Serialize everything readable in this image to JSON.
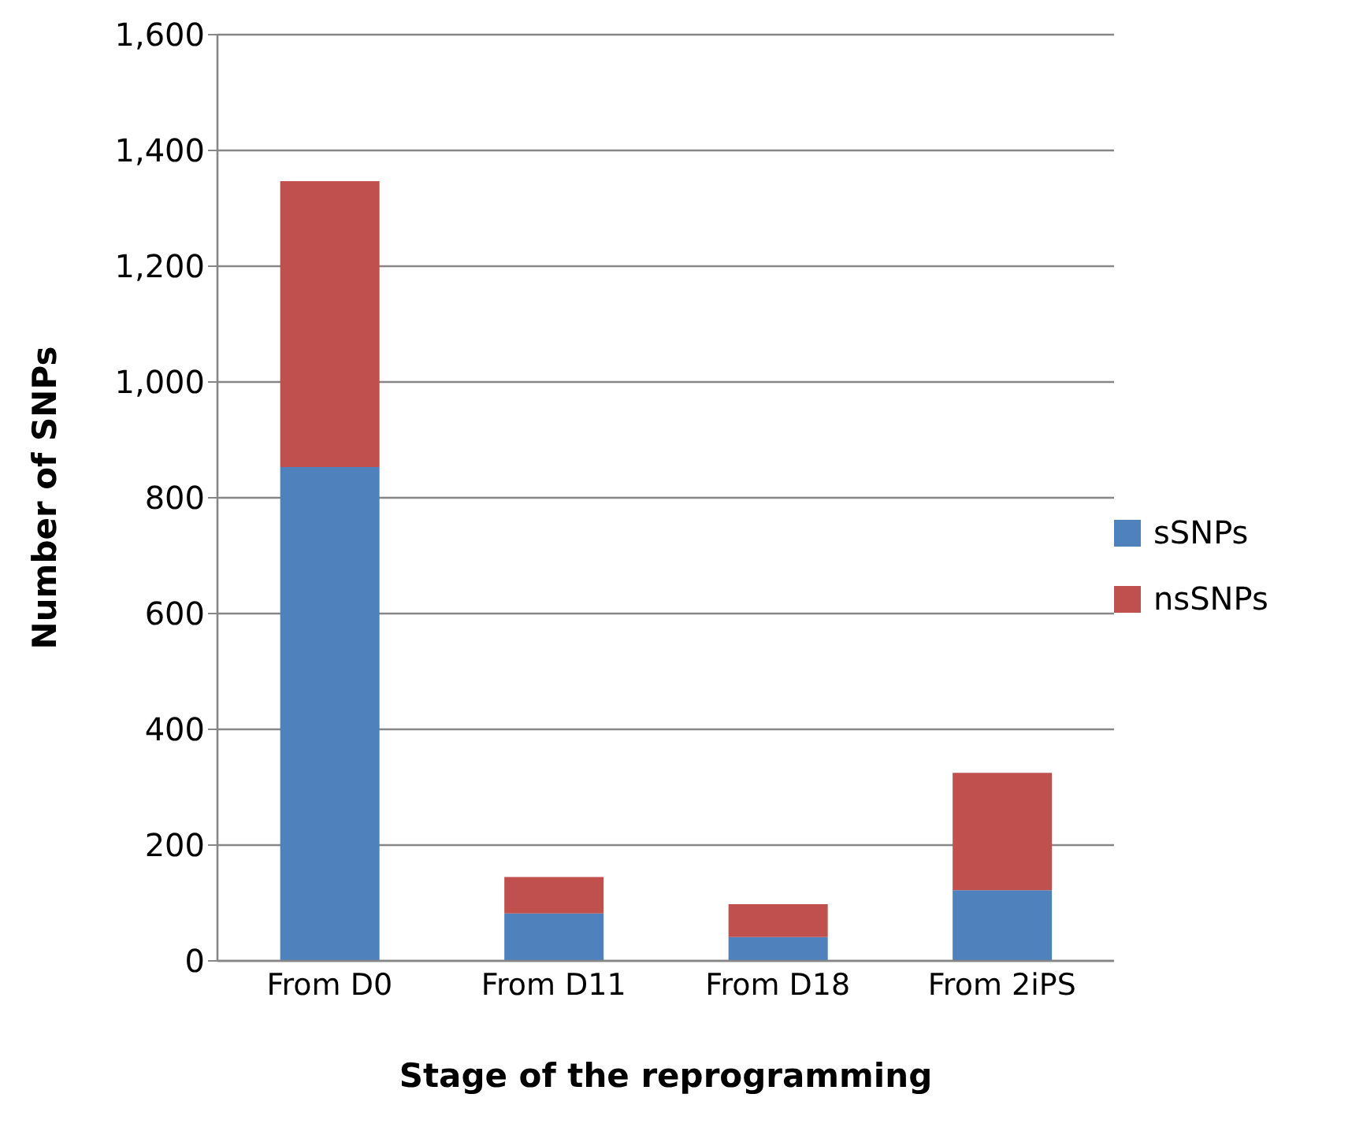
{
  "chart_data": {
    "type": "bar",
    "stacked": true,
    "xlabel": "Stage of the reprogramming",
    "ylabel": "Number of SNPs",
    "categories": [
      "From D0",
      "From D11",
      "From D18",
      "From 2iPS"
    ],
    "series": [
      {
        "name": "sSNPs",
        "color": "#4f81bd",
        "values": [
          853,
          82,
          41,
          122
        ]
      },
      {
        "name": "nsSNPs",
        "color": "#c0504d",
        "values": [
          494,
          63,
          57,
          203
        ]
      }
    ],
    "ylim": [
      0,
      1600
    ],
    "yticks": [
      {
        "value": 0,
        "label": "0"
      },
      {
        "value": 200,
        "label": "200"
      },
      {
        "value": 400,
        "label": "400"
      },
      {
        "value": 600,
        "label": "600"
      },
      {
        "value": 800,
        "label": "800"
      },
      {
        "value": 1000,
        "label": "1,000"
      },
      {
        "value": 1200,
        "label": "1,200"
      },
      {
        "value": 1400,
        "label": "1,400"
      },
      {
        "value": 1600,
        "label": "1,600"
      }
    ],
    "grid": "y",
    "legend": "right"
  }
}
